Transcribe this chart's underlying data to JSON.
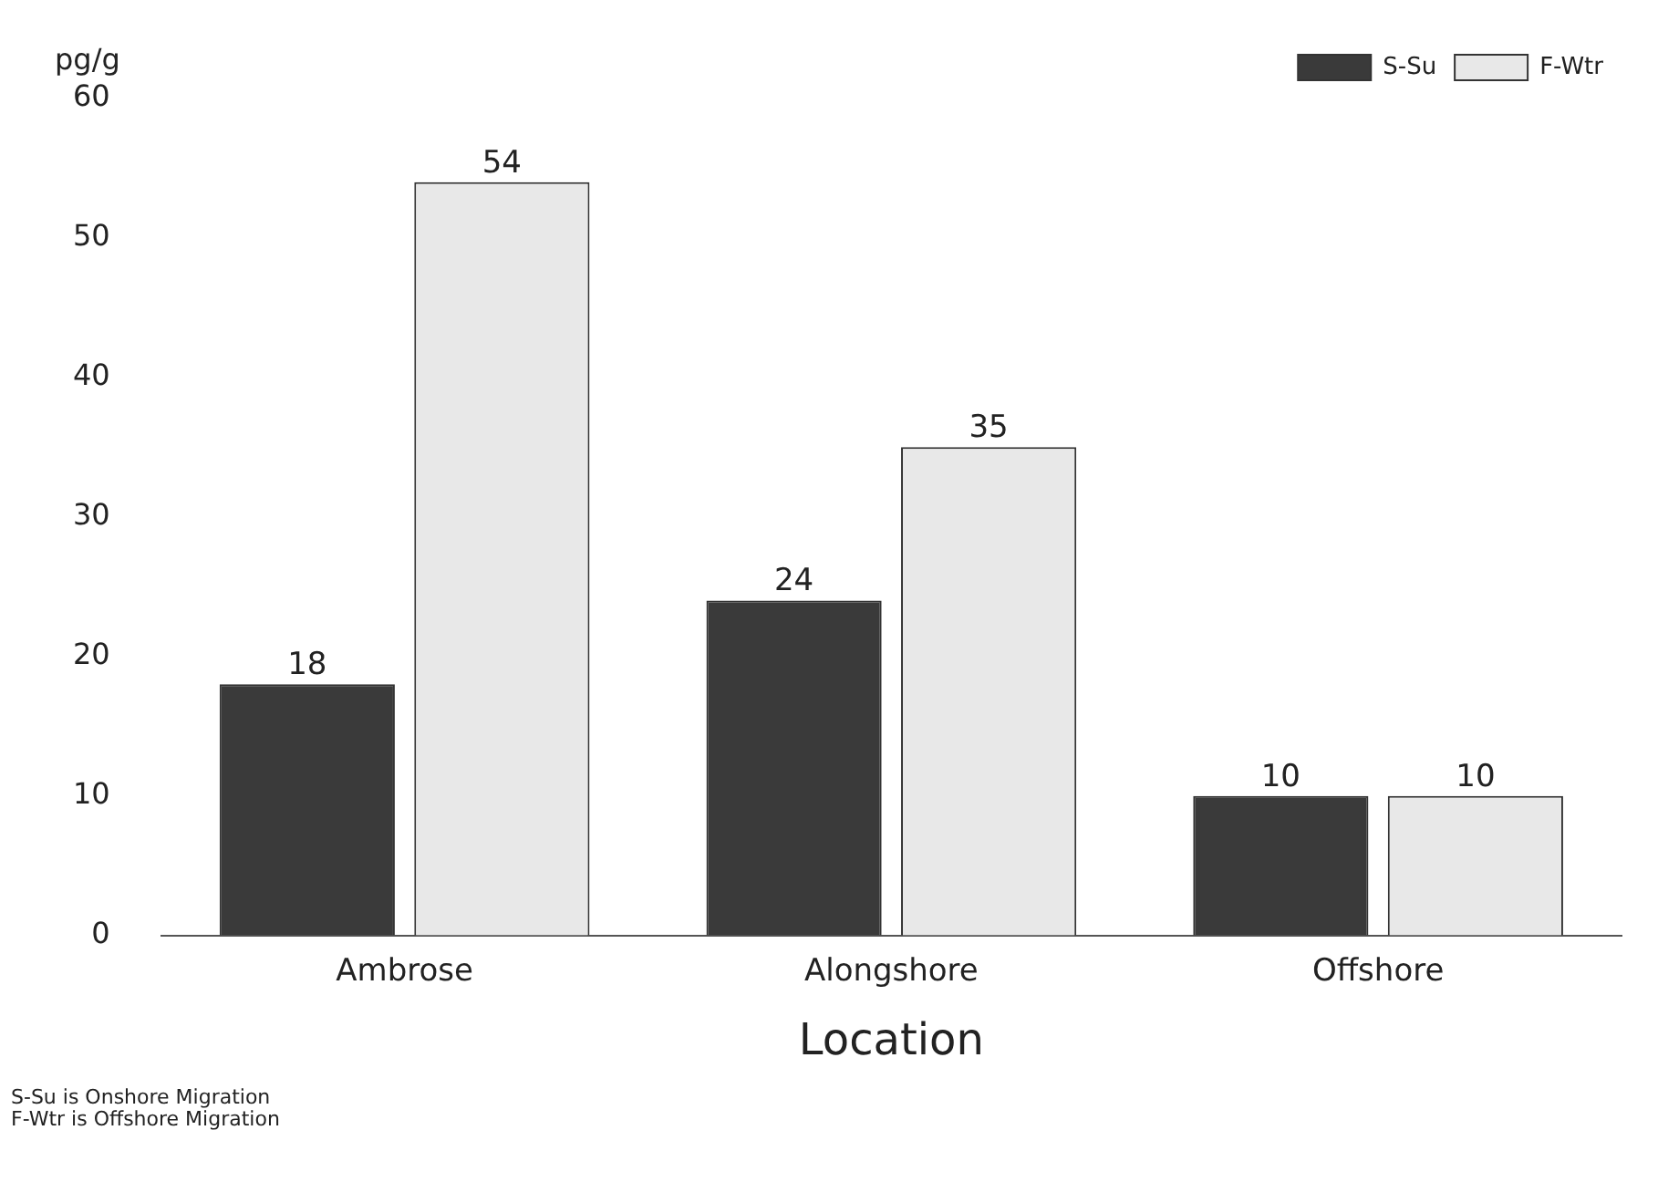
{
  "chart_data": {
    "type": "bar",
    "ylabel": "pg/g",
    "xlabel": "Location",
    "categories": [
      "Ambrose",
      "Alongshore",
      "Offshore"
    ],
    "series": [
      {
        "name": "S-Su",
        "color": "#3a3a3a",
        "values": [
          18,
          24,
          10
        ]
      },
      {
        "name": "F-Wtr",
        "color": "#e8e8e8",
        "values": [
          54,
          35,
          10
        ]
      }
    ],
    "ylim": [
      0,
      60
    ],
    "yticks": [
      0,
      10,
      20,
      30,
      40,
      50,
      60
    ],
    "grid": false,
    "legend": "top right",
    "data_labels": true,
    "annotations": [
      "S-Su is Onshore Migration",
      "F-Wtr is Offshore Migration"
    ]
  }
}
